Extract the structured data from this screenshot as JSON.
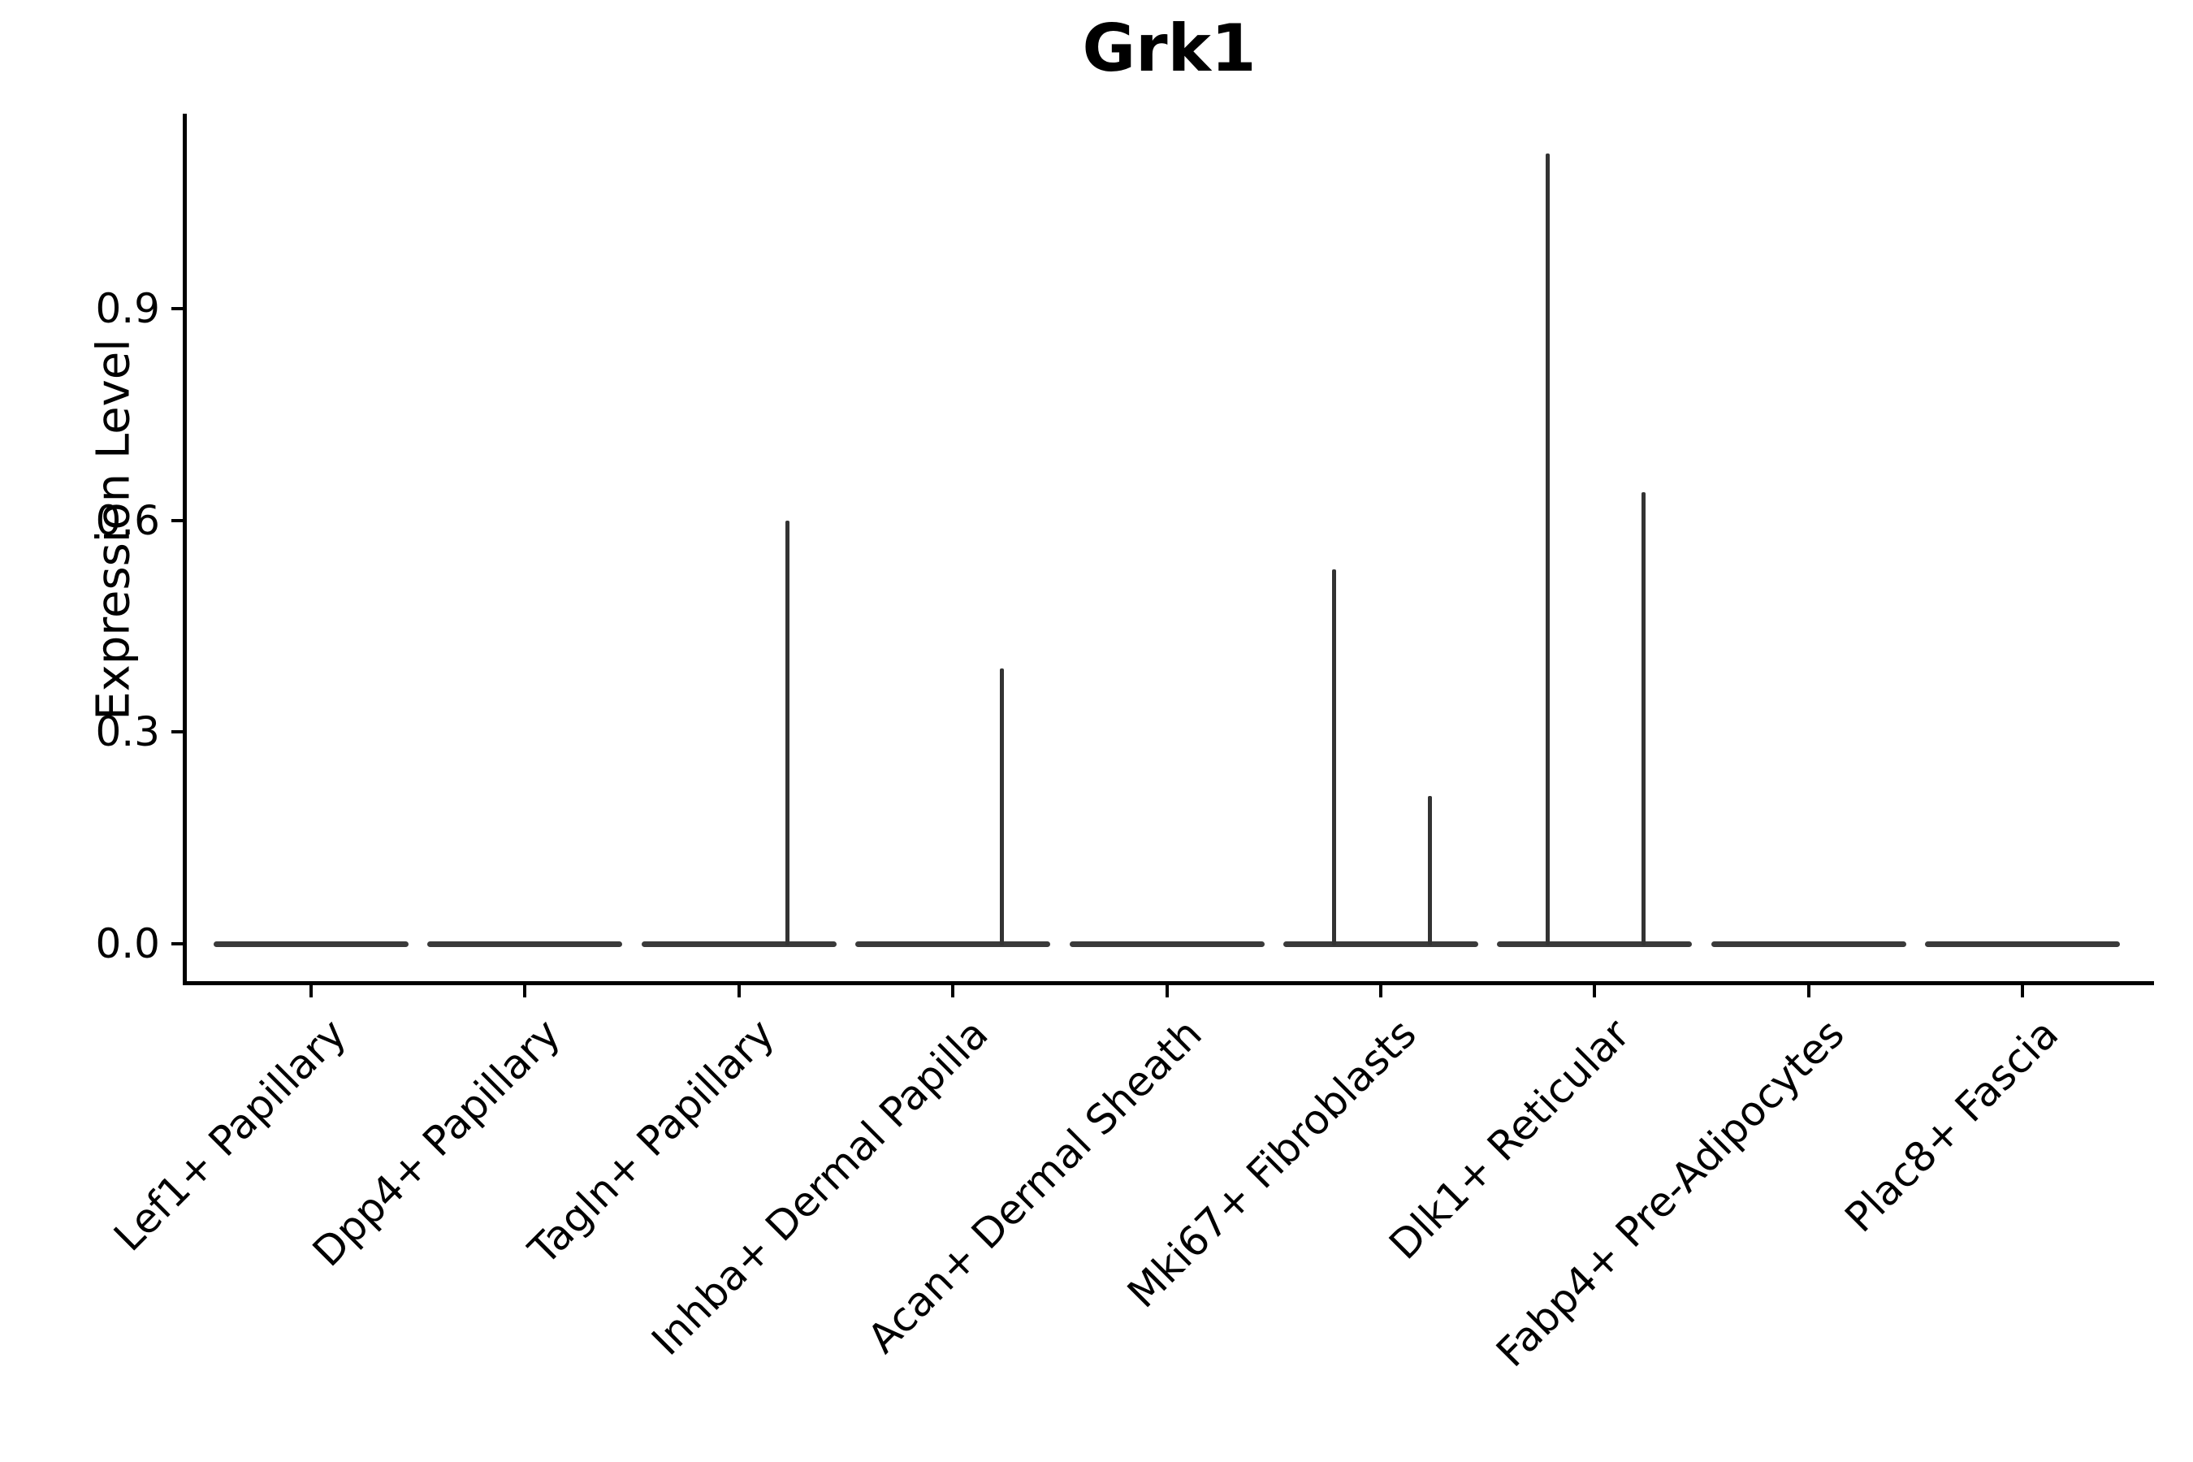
{
  "figure": {
    "title": "Grk1",
    "ylabel": "Expression Level"
  },
  "chart_data": {
    "type": "violin",
    "title": "Grk1",
    "xlabel": "",
    "ylabel": "Expression Level",
    "grid": false,
    "legend_position": "none",
    "background": "#ffffff",
    "yticks": [
      "0.0",
      "0.3",
      "0.6",
      "0.9"
    ],
    "ylim": [
      0,
      1.17
    ],
    "categories": [
      "Lef1+ Papillary",
      "Dpp4+ Papillary",
      "Tagln+ Papillary",
      "Inhba+ Dermal Papilla",
      "Acan+ Dermal Sheath",
      "Mki67+ Fibroblasts",
      "Dlk1+ Reticular",
      "Fabp4+ Pre-Adipocytes",
      "Plac8+ Fascia"
    ],
    "violins": [
      {
        "category": "Lef1+ Papillary",
        "baseline_value": 0.0,
        "spikes": []
      },
      {
        "category": "Dpp4+ Papillary",
        "baseline_value": 0.0,
        "spikes": []
      },
      {
        "category": "Tagln+ Papillary",
        "baseline_value": 0.0,
        "spikes": [
          {
            "side": "right",
            "value": 0.6
          }
        ]
      },
      {
        "category": "Inhba+ Dermal Papilla",
        "baseline_value": 0.0,
        "spikes": [
          {
            "side": "right",
            "value": 0.39
          }
        ]
      },
      {
        "category": "Acan+ Dermal Sheath",
        "baseline_value": 0.0,
        "spikes": []
      },
      {
        "category": "Mki67+ Fibroblasts",
        "baseline_value": 0.0,
        "spikes": [
          {
            "side": "left",
            "value": 0.53
          },
          {
            "side": "right",
            "value": 0.21
          }
        ]
      },
      {
        "category": "Dlk1+ Reticular",
        "baseline_value": 0.0,
        "spikes": [
          {
            "side": "left",
            "value": 1.12
          },
          {
            "side": "right",
            "value": 0.64
          }
        ]
      },
      {
        "category": "Fabp4+ Pre-Adipocytes",
        "baseline_value": 0.0,
        "spikes": []
      },
      {
        "category": "Plac8+ Fascia",
        "baseline_value": 0.0,
        "spikes": []
      }
    ],
    "colors": {
      "violin": "#3a3a3a",
      "spike": "#333333",
      "axis": "#000000",
      "text": "#000000",
      "background": "#ffffff"
    }
  }
}
